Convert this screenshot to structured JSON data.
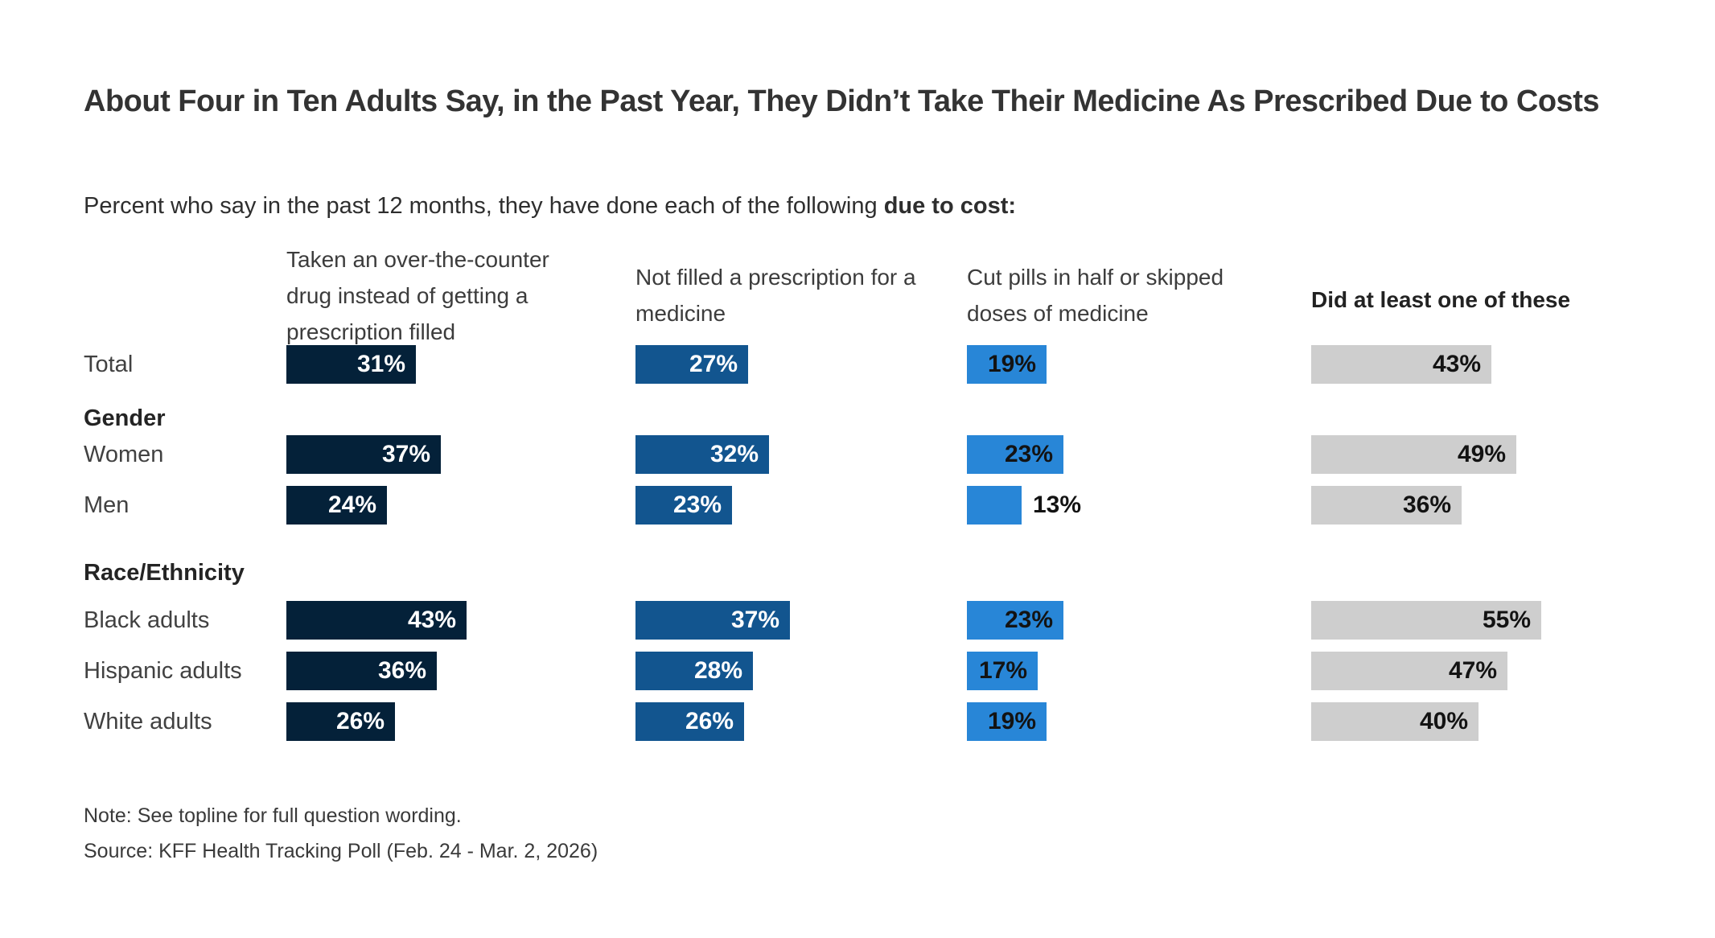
{
  "title": "About Four in Ten Adults Say, in the Past Year, They Didn’t Take Their Medicine As Prescribed Due to Costs",
  "subtitle": {
    "prefix": "Percent who say in the past 12 months, they have done each of the following ",
    "emphasis": "due to cost:"
  },
  "note": "Note: See topline for full question wording.",
  "source": "Source: KFF Health Tracking Poll (Feb. 24 - Mar. 2, 2026)",
  "chart_data": {
    "type": "bar",
    "orientation": "horizontal",
    "unit": "%",
    "xlim": [
      0,
      60
    ],
    "grid": false,
    "value_label_position": "inside-end",
    "outside_label_color": "#131313",
    "columns": [
      {
        "label": "Taken an over-the-counter drug instead of getting a prescription filled",
        "color": "#042139",
        "label_color": "#ffffff",
        "bold_header": false
      },
      {
        "label": "Not filled a prescription for a medicine",
        "color": "#12558F",
        "label_color": "#ffffff",
        "bold_header": false
      },
      {
        "label": "Cut pills in half or skipped doses of medicine",
        "color": "#2886D7",
        "label_color": "#131313",
        "bold_header": false
      },
      {
        "label": "Did at least one of these",
        "color": "#CECECE",
        "label_color": "#131313",
        "bold_header": true
      }
    ],
    "rows": [
      {
        "type": "data",
        "label": "Total",
        "values": [
          31,
          27,
          19,
          43
        ],
        "labels": [
          "31%",
          "27%",
          "19%",
          "43%"
        ]
      },
      {
        "type": "section",
        "label": "Gender"
      },
      {
        "type": "data",
        "label": "Women",
        "values": [
          37,
          32,
          23,
          49
        ],
        "labels": [
          "37%",
          "32%",
          "23%",
          "49%"
        ]
      },
      {
        "type": "data",
        "label": "Men",
        "values": [
          24,
          23,
          13,
          36
        ],
        "labels": [
          "24%",
          "23%",
          "13%",
          "36%"
        ]
      },
      {
        "type": "section",
        "label": "Race/Ethnicity"
      },
      {
        "type": "data",
        "label": "Black adults",
        "values": [
          43,
          37,
          23,
          55
        ],
        "labels": [
          "43%",
          "37%",
          "23%",
          "55%"
        ]
      },
      {
        "type": "data",
        "label": "Hispanic adults",
        "values": [
          36,
          28,
          17,
          47
        ],
        "labels": [
          "36%",
          "28%",
          "17%",
          "47%"
        ]
      },
      {
        "type": "data",
        "label": "White adults",
        "values": [
          26,
          26,
          19,
          40
        ],
        "labels": [
          "26%",
          "26%",
          "19%",
          "40%"
        ]
      }
    ]
  }
}
